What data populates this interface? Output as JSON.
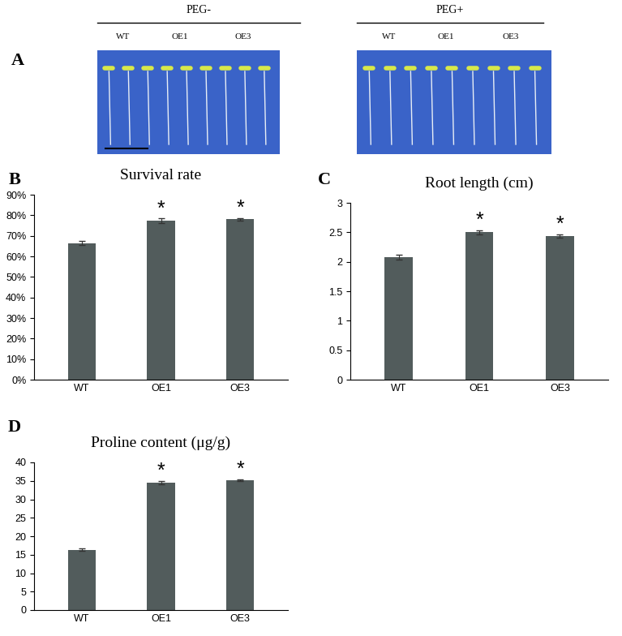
{
  "photo_panel": {
    "panel": "A",
    "groups": [
      {
        "treatment": "PEG-",
        "labels": [
          "WT",
          "OE1",
          "OE3"
        ]
      },
      {
        "treatment": "PEG+",
        "labels": [
          "WT",
          "OE1",
          "OE3"
        ]
      }
    ]
  },
  "chart_data": [
    {
      "type": "bar",
      "panel": "B",
      "title": "Survival rate",
      "categories": [
        "WT",
        "OE1",
        "OE3"
      ],
      "values": [
        66.5,
        77.2,
        78.1
      ],
      "errors": [
        1.0,
        1.2,
        0.6
      ],
      "significance": [
        null,
        "*",
        "*"
      ],
      "color": "#525c5c",
      "ylim": [
        0,
        90
      ],
      "yticks": [
        {
          "value": 0,
          "label": "0%"
        },
        {
          "value": 10,
          "label": "10%"
        },
        {
          "value": 20,
          "label": "20%"
        },
        {
          "value": 30,
          "label": "30%"
        },
        {
          "value": 40,
          "label": "40%"
        },
        {
          "value": 50,
          "label": "50%"
        },
        {
          "value": 60,
          "label": "60%"
        },
        {
          "value": 70,
          "label": "70%"
        },
        {
          "value": 80,
          "label": "80%"
        },
        {
          "value": 90,
          "label": "90%"
        }
      ]
    },
    {
      "type": "bar",
      "panel": "C",
      "title": "Root length (cm)",
      "categories": [
        "WT",
        "OE1",
        "OE3"
      ],
      "values": [
        2.08,
        2.5,
        2.44
      ],
      "errors": [
        0.04,
        0.03,
        0.03
      ],
      "significance": [
        null,
        "*",
        "*"
      ],
      "color": "#525c5c",
      "ylim": [
        0,
        3
      ],
      "yticks": [
        0,
        0.5,
        1,
        1.5,
        2,
        2.5,
        3
      ]
    },
    {
      "type": "bar",
      "panel": "D",
      "title": "Proline content (μg/g)",
      "categories": [
        "WT",
        "OE1",
        "OE3"
      ],
      "values": [
        16.3,
        34.5,
        35.2
      ],
      "errors": [
        0.3,
        0.5,
        0.2
      ],
      "significance": [
        null,
        "*",
        "*"
      ],
      "color": "#525c5c",
      "ylim": [
        0,
        40
      ],
      "yticks": [
        0,
        5,
        10,
        15,
        20,
        25,
        30,
        35,
        40
      ]
    }
  ]
}
